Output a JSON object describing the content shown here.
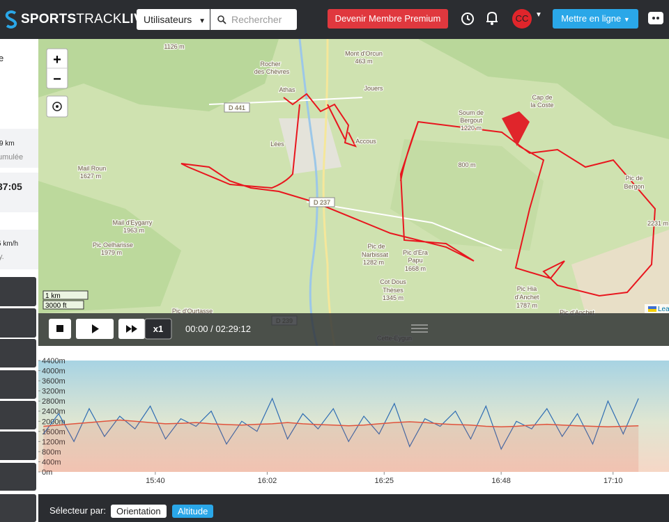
{
  "navbar": {
    "brand_bold": "SPORTS",
    "brand_light": "TRACK",
    "brand_end": "LIVE",
    "users_dropdown": "Utilisateurs",
    "search_placeholder": "Rechercher",
    "premium_button": "Devenir Membre Premium",
    "avatar": "CC",
    "upload_button": "Mettre en ligne"
  },
  "sidebar": {
    "texts": [
      "e",
      "9 km",
      "umulée",
      "37:05",
      "5 km/h",
      "y."
    ]
  },
  "map": {
    "labels": [
      "1126 m",
      "Rocher",
      "des Chèvres",
      "Mont d'Orcun",
      "463 m",
      "Jouers",
      "D 441",
      "Athas",
      "Cap de",
      "la Coste",
      "Accous",
      "Lées",
      "Soum de",
      "Bergout",
      "1220 m",
      "800 m",
      "Mail Roun",
      "1627 m",
      "D 237",
      "Pic de",
      "Bergon",
      "Mail d'Eygarry",
      "1963 m",
      "Pic Oelharisse",
      "1979 m",
      "Pic de",
      "Narbissat",
      "1282 m",
      "Pic d'Era",
      "Papu",
      "1668 m",
      "Cot Dous",
      "Thèses",
      "1345 m",
      "Pic Hia",
      "d'Anchet",
      "1787 m",
      "Pic d'Anchet",
      "Pic d'Ourtasse",
      "D 239",
      "Cette-Eygun",
      "2231 m"
    ],
    "scale": [
      "1 km",
      "3000 ft"
    ],
    "attribution": "Lea"
  },
  "player": {
    "speed": "x1",
    "time": "00:00 / 02:29:12"
  },
  "chart_data": {
    "type": "line",
    "x": [
      918,
      921,
      924,
      927,
      930,
      933,
      936,
      939,
      942,
      945,
      948,
      951,
      954,
      957,
      960,
      963,
      966,
      969,
      972,
      975,
      978,
      981,
      984,
      987,
      990,
      993,
      996,
      999,
      1002,
      1005,
      1008,
      1011,
      1014,
      1017,
      1020,
      1023,
      1026,
      1029,
      1032,
      1035
    ],
    "series": [
      {
        "color": "#2f6db3",
        "values": [
          1500,
          2300,
          1200,
          2500,
          1400,
          2200,
          1700,
          2600,
          1300,
          2100,
          1800,
          2400,
          1100,
          2000,
          1600,
          2900,
          1300,
          2300,
          1700,
          2500,
          1200,
          2200,
          1500,
          2700,
          1000,
          2100,
          1800,
          2400,
          1300,
          2600,
          900,
          2000,
          1700,
          2500,
          1400,
          2300,
          1100,
          2800,
          1500,
          2900
        ]
      },
      {
        "color": "#e0533c",
        "values": [
          1800,
          1850,
          1900,
          1950,
          2000,
          2050,
          2000,
          1950,
          1900,
          1920,
          1950,
          1900,
          1870,
          1850,
          1880,
          1900,
          1950,
          1900,
          1870,
          1850,
          1820,
          1850,
          1900,
          1950,
          1980,
          1950,
          1900,
          1870,
          1850,
          1800,
          1780,
          1800,
          1850,
          1880,
          1850,
          1820,
          1800,
          1780,
          1800,
          1820
        ]
      }
    ],
    "xlim": [
      917,
      1041
    ],
    "ylim": [
      0,
      4400
    ],
    "xticks": [
      {
        "value": 940,
        "label": "15:40"
      },
      {
        "value": 962,
        "label": "16:02"
      },
      {
        "value": 985,
        "label": "16:25"
      },
      {
        "value": 1008,
        "label": "16:48"
      },
      {
        "value": 1030,
        "label": "17:10"
      }
    ],
    "yticks": [
      {
        "value": 0,
        "label": "0m"
      },
      {
        "value": 400,
        "label": "400m"
      },
      {
        "value": 800,
        "label": "800m"
      },
      {
        "value": 1200,
        "label": "1200m"
      },
      {
        "value": 1600,
        "label": "1600m"
      },
      {
        "value": 2000,
        "label": "2000m"
      },
      {
        "value": 2400,
        "label": "2400m"
      },
      {
        "value": 2800,
        "label": "2800m"
      },
      {
        "value": 3200,
        "label": "3200m"
      },
      {
        "value": 3600,
        "label": "3600m"
      },
      {
        "value": 4000,
        "label": "4000m"
      },
      {
        "value": 4400,
        "label": "4400m"
      }
    ]
  },
  "selector": {
    "label": "Sélecteur par:",
    "options": [
      "Orientation",
      "Altitude"
    ]
  }
}
